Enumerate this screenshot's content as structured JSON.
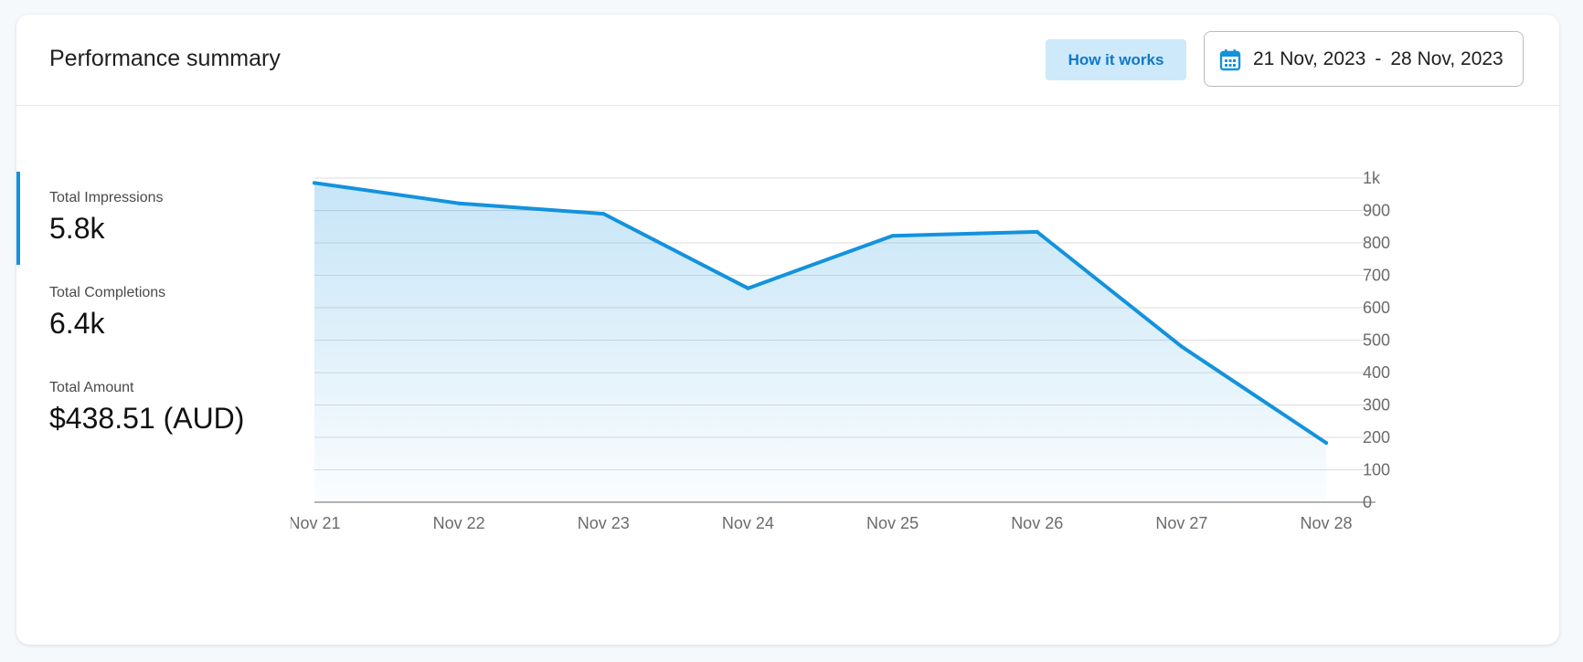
{
  "header": {
    "title": "Performance summary",
    "how_it_works_label": "How it works",
    "date_range": {
      "icon": "calendar-icon",
      "start": "21 Nov, 2023",
      "separator": "-",
      "end": "28 Nov, 2023"
    }
  },
  "metrics": [
    {
      "label": "Total Impressions",
      "value": "5.8k",
      "active": true
    },
    {
      "label": "Total Completions",
      "value": "6.4k",
      "active": false
    },
    {
      "label": "Total Amount",
      "value": "$438.51 (AUD)",
      "active": false
    }
  ],
  "colors": {
    "accent": "#1392de",
    "button_bg": "#cde9fa",
    "button_text": "#1078c8"
  },
  "chart_data": {
    "type": "area",
    "categories": [
      "Nov 21",
      "Nov 22",
      "Nov 23",
      "Nov 24",
      "Nov 25",
      "Nov 26",
      "Nov 27",
      "Nov 28"
    ],
    "values": [
      985,
      922,
      890,
      660,
      822,
      834,
      480,
      183
    ],
    "ylim": [
      0,
      1000
    ],
    "yticks": [
      {
        "value": 0,
        "label": "0"
      },
      {
        "value": 100,
        "label": "100"
      },
      {
        "value": 200,
        "label": "200"
      },
      {
        "value": 300,
        "label": "300"
      },
      {
        "value": 400,
        "label": "400"
      },
      {
        "value": 500,
        "label": "500"
      },
      {
        "value": 600,
        "label": "600"
      },
      {
        "value": 700,
        "label": "700"
      },
      {
        "value": 800,
        "label": "800"
      },
      {
        "value": 900,
        "label": "900"
      },
      {
        "value": 1000,
        "label": "1k"
      }
    ],
    "y_axis_side": "right",
    "grid": true,
    "title": "",
    "xlabel": "",
    "ylabel": ""
  }
}
